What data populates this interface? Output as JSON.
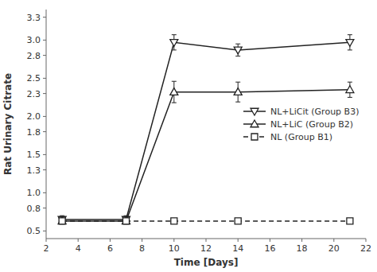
{
  "chart_data": {
    "type": "line",
    "xlabel": "Time [Days]",
    "ylabel": "Rat Urinary Citrate",
    "xlim": [
      2,
      22
    ],
    "ylim": [
      0.4,
      3.4
    ],
    "xticks": [
      2,
      4,
      6,
      8,
      10,
      12,
      14,
      16,
      18,
      20,
      22
    ],
    "yticks": [
      0.5,
      0.8,
      {
        "value": 1.0,
        "label": "1.0"
      },
      1.3,
      1.5,
      1.8,
      {
        "value": 2.0,
        "label": "2.0"
      },
      2.3,
      2.5,
      2.8,
      {
        "value": 3.0,
        "label": "3.0"
      },
      3.3
    ],
    "x": [
      3,
      7,
      10,
      14,
      21
    ],
    "grid": false,
    "legend": "center right",
    "series": [
      {
        "name": "NL+LiCit (Group B3)",
        "color": "#222222",
        "marker": "triangle-down",
        "line_style": "solid",
        "values": [
          0.65,
          0.65,
          2.97,
          2.87,
          2.97
        ],
        "yerr": [
          0.05,
          0.05,
          0.1,
          0.08,
          0.1
        ]
      },
      {
        "name": "NL+LiC (Group B2)",
        "color": "#222222",
        "marker": "triangle-up",
        "line_style": "solid",
        "values": [
          0.63,
          0.63,
          2.32,
          2.32,
          2.35
        ],
        "yerr": [
          0.04,
          0.04,
          0.14,
          0.13,
          0.1
        ]
      },
      {
        "name": "NL (Group B1)",
        "color": "#222222",
        "marker": "square",
        "line_style": "dashed",
        "values": [
          0.63,
          0.63,
          0.63,
          0.63,
          0.63
        ],
        "yerr": [
          0.03,
          0.03,
          0.03,
          0.03,
          0.03
        ]
      }
    ]
  }
}
